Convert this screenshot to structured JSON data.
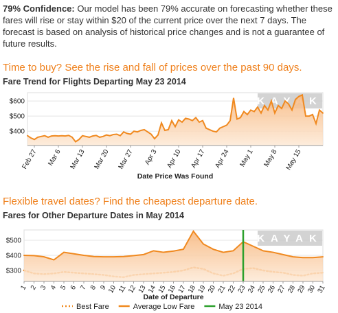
{
  "intro": {
    "lead": "79% Confidence:",
    "text": "Our model has been 79% accurate on forecasting whether these fares will rise or stay within $20 of the current price over the next 7 days. The forecast is based on analysis of historical price changes and is not a guarantee of future results."
  },
  "headings": [
    "Time to buy? See the rise and fall of prices over the past 90 days.",
    "Flexible travel dates? Find the cheapest departure date."
  ],
  "chart_data": [
    {
      "type": "area",
      "title": "Fare Trend for Flights Departing May 23 2014",
      "xlabel": "Date Price Was Found",
      "watermark": "KAYAK",
      "categories": [
        null,
        null,
        "Feb 27",
        null,
        null,
        null,
        null,
        null,
        null,
        "Mar 6",
        null,
        null,
        null,
        null,
        null,
        null,
        "Mar 13",
        null,
        null,
        null,
        null,
        null,
        null,
        "Mar 20",
        null,
        null,
        null,
        null,
        null,
        null,
        "Mar 27",
        null,
        null,
        null,
        null,
        null,
        null,
        "Apr 3",
        null,
        null,
        null,
        null,
        null,
        null,
        "Apr 10",
        null,
        null,
        null,
        null,
        null,
        null,
        "Apr 17",
        null,
        null,
        null,
        null,
        null,
        null,
        "Apr 24",
        null,
        null,
        null,
        null,
        null,
        null,
        "May 1",
        null,
        null,
        null,
        null,
        null,
        null,
        "May 8",
        null,
        null,
        null,
        null,
        null,
        null,
        "May 15",
        null,
        null,
        null,
        null,
        null,
        null,
        null
      ],
      "series": [
        {
          "color": "#f0891f",
          "style": "solid",
          "fill": true,
          "values": [
            370,
            355,
            345,
            360,
            365,
            370,
            360,
            368,
            370,
            368,
            370,
            368,
            372,
            360,
            330,
            345,
            370,
            365,
            360,
            368,
            372,
            360,
            365,
            375,
            370,
            378,
            380,
            370,
            395,
            385,
            380,
            400,
            395,
            405,
            410,
            395,
            380,
            350,
            375,
            455,
            405,
            410,
            470,
            430,
            475,
            460,
            485,
            480,
            470,
            490,
            460,
            470,
            420,
            410,
            400,
            395,
            420,
            430,
            440,
            470,
            620,
            480,
            490,
            530,
            510,
            540,
            530,
            560,
            520,
            570,
            540,
            600,
            520,
            570,
            550,
            600,
            580,
            540,
            610,
            630,
            640,
            500,
            500,
            510,
            450,
            540,
            520
          ]
        }
      ],
      "ylim": [
        305,
        655
      ],
      "yticks": [
        {
          "value": 400,
          "label": "$400"
        },
        {
          "value": 500,
          "label": "$500"
        },
        {
          "value": 600,
          "label": "$600"
        }
      ],
      "grid": true
    },
    {
      "type": "line",
      "title": "Fares for Other Departure Dates in May 2014",
      "xlabel": "Date of Departure",
      "watermark": "KAYAK",
      "categories": [
        "1",
        "2",
        "3",
        "4",
        "5",
        "6",
        "7",
        "8",
        "9",
        "10",
        "11",
        "12",
        "13",
        "14",
        "15",
        "16",
        "17",
        "18",
        "19",
        "20",
        "21",
        "22",
        "23",
        "24",
        "25",
        "26",
        "27",
        "28",
        "29",
        "30",
        "31"
      ],
      "series": [
        {
          "name": "Best Fare",
          "color": "#f0891f",
          "style": "dotted",
          "fill": false,
          "values": [
            300,
            280,
            275,
            280,
            290,
            285,
            280,
            275,
            270,
            260,
            255,
            270,
            275,
            280,
            285,
            290,
            300,
            320,
            310,
            280,
            265,
            280,
            310,
            315,
            300,
            290,
            285,
            270,
            265,
            280,
            285
          ]
        },
        {
          "name": "Average Low Fare",
          "color": "#f0891f",
          "style": "solid",
          "fill": true,
          "values": [
            400,
            398,
            390,
            370,
            420,
            410,
            400,
            392,
            390,
            390,
            392,
            398,
            405,
            430,
            420,
            428,
            440,
            560,
            475,
            440,
            420,
            430,
            490,
            460,
            430,
            420,
            405,
            390,
            385,
            385,
            390
          ]
        }
      ],
      "reference_line": {
        "name": "May 23 2014",
        "category": "23",
        "color": "#2ca02c"
      },
      "ylim": [
        227,
        568
      ],
      "yticks": [
        {
          "value": 300,
          "label": "$300"
        },
        {
          "value": 400,
          "label": "$400"
        },
        {
          "value": 500,
          "label": "$500"
        }
      ],
      "grid": true
    }
  ]
}
